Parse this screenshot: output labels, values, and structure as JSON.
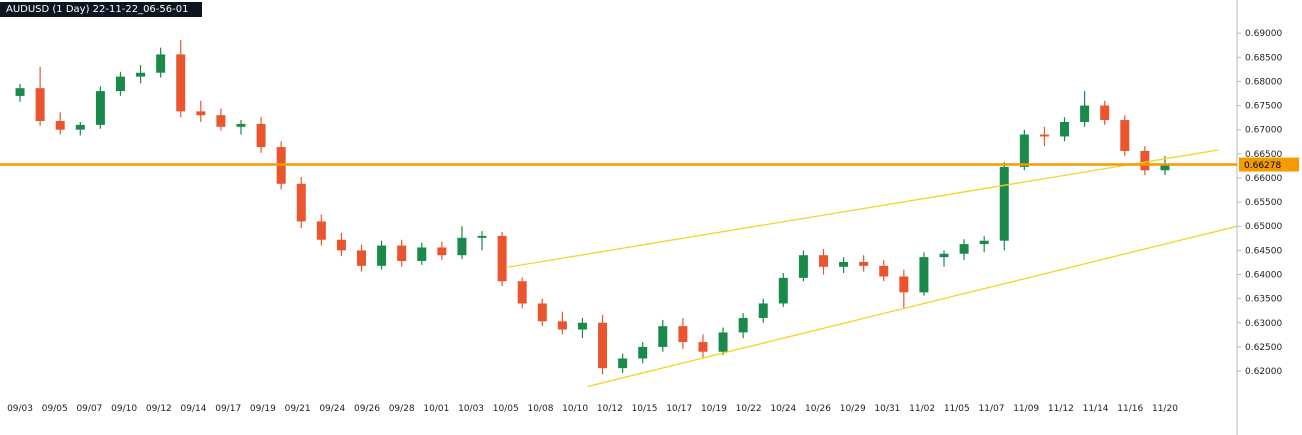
{
  "header": {
    "title": "AUDUSD (1 Day) 22-11-22_06-56-01"
  },
  "colors": {
    "up": "#1a8a4b",
    "down": "#e8552f",
    "hline": "#f59b00",
    "trendline": "#f5d327",
    "axis_line": "#b8b8b8",
    "axis_text": "#222222",
    "badge_text": "#000000",
    "titlebar_bg": "#0d1520",
    "titlebar_text": "#ffffff"
  },
  "chart_data": {
    "type": "candlestick",
    "symbol": "AUDUSD",
    "timeframe": "1 Day",
    "snapshot_label": "22-11-22_06-56-01",
    "current_price": 0.66278,
    "y_axis": {
      "min": 0.614,
      "max": 0.6948,
      "tick_labels": [
        "0.69000",
        "0.68500",
        "0.68000",
        "0.67500",
        "0.67000",
        "0.66500",
        "0.66000",
        "0.65500",
        "0.65000",
        "0.64500",
        "0.64000",
        "0.63500",
        "0.63000",
        "0.62500",
        "0.62000"
      ]
    },
    "x_labels": [
      "09/03",
      "09/05",
      "09/07",
      "09/10",
      "09/12",
      "09/14",
      "09/17",
      "09/19",
      "09/21",
      "09/24",
      "09/26",
      "09/28",
      "10/01",
      "10/03",
      "10/05",
      "10/08",
      "10/10",
      "10/12",
      "10/15",
      "10/17",
      "10/19",
      "10/22",
      "10/24",
      "10/26",
      "10/29",
      "10/31",
      "11/02",
      "11/05",
      "11/07",
      "11/09",
      "11/12",
      "11/14",
      "11/16",
      "11/20"
    ],
    "candles": [
      {
        "d": "09/03",
        "o": 0.677,
        "h": 0.6795,
        "l": 0.6758,
        "c": 0.6786
      },
      {
        "d": "09/04",
        "o": 0.6786,
        "h": 0.683,
        "l": 0.6708,
        "c": 0.6718
      },
      {
        "d": "09/05",
        "o": 0.6718,
        "h": 0.6736,
        "l": 0.669,
        "c": 0.67
      },
      {
        "d": "09/06",
        "o": 0.67,
        "h": 0.6716,
        "l": 0.6688,
        "c": 0.671
      },
      {
        "d": "09/07",
        "o": 0.671,
        "h": 0.679,
        "l": 0.6702,
        "c": 0.678
      },
      {
        "d": "09/10",
        "o": 0.678,
        "h": 0.682,
        "l": 0.677,
        "c": 0.681
      },
      {
        "d": "09/11",
        "o": 0.681,
        "h": 0.6834,
        "l": 0.6796,
        "c": 0.6818
      },
      {
        "d": "09/12",
        "o": 0.6818,
        "h": 0.687,
        "l": 0.6808,
        "c": 0.6856
      },
      {
        "d": "09/13",
        "o": 0.6856,
        "h": 0.6886,
        "l": 0.6726,
        "c": 0.6738
      },
      {
        "d": "09/14",
        "o": 0.6738,
        "h": 0.676,
        "l": 0.6716,
        "c": 0.673
      },
      {
        "d": "09/17",
        "o": 0.673,
        "h": 0.6744,
        "l": 0.6698,
        "c": 0.6706
      },
      {
        "d": "09/18",
        "o": 0.6706,
        "h": 0.672,
        "l": 0.669,
        "c": 0.6712
      },
      {
        "d": "09/19",
        "o": 0.6712,
        "h": 0.6726,
        "l": 0.6652,
        "c": 0.6664
      },
      {
        "d": "09/20",
        "o": 0.6664,
        "h": 0.6676,
        "l": 0.6576,
        "c": 0.6588
      },
      {
        "d": "09/21",
        "o": 0.6588,
        "h": 0.6602,
        "l": 0.6496,
        "c": 0.651
      },
      {
        "d": "09/24",
        "o": 0.651,
        "h": 0.6524,
        "l": 0.646,
        "c": 0.6472
      },
      {
        "d": "09/25",
        "o": 0.6472,
        "h": 0.6486,
        "l": 0.6438,
        "c": 0.645
      },
      {
        "d": "09/26",
        "o": 0.645,
        "h": 0.6462,
        "l": 0.6406,
        "c": 0.6418
      },
      {
        "d": "09/27",
        "o": 0.6418,
        "h": 0.647,
        "l": 0.641,
        "c": 0.646
      },
      {
        "d": "09/28",
        "o": 0.646,
        "h": 0.6472,
        "l": 0.6416,
        "c": 0.6428
      },
      {
        "d": "10/01",
        "o": 0.6428,
        "h": 0.6466,
        "l": 0.642,
        "c": 0.6456
      },
      {
        "d": "10/02",
        "o": 0.6456,
        "h": 0.6468,
        "l": 0.643,
        "c": 0.644
      },
      {
        "d": "10/03",
        "o": 0.644,
        "h": 0.65,
        "l": 0.6432,
        "c": 0.6476
      },
      {
        "d": "10/04",
        "o": 0.6476,
        "h": 0.649,
        "l": 0.645,
        "c": 0.648
      },
      {
        "d": "10/05",
        "o": 0.648,
        "h": 0.6488,
        "l": 0.6376,
        "c": 0.6386
      },
      {
        "d": "10/08",
        "o": 0.6386,
        "h": 0.6394,
        "l": 0.633,
        "c": 0.634
      },
      {
        "d": "10/09",
        "o": 0.634,
        "h": 0.635,
        "l": 0.6293,
        "c": 0.6303
      },
      {
        "d": "10/10",
        "o": 0.6303,
        "h": 0.6323,
        "l": 0.6276,
        "c": 0.6286
      },
      {
        "d": "10/11",
        "o": 0.6286,
        "h": 0.631,
        "l": 0.6268,
        "c": 0.63
      },
      {
        "d": "10/12",
        "o": 0.63,
        "h": 0.6316,
        "l": 0.6193,
        "c": 0.6206
      },
      {
        "d": "10/15",
        "o": 0.6206,
        "h": 0.6236,
        "l": 0.6196,
        "c": 0.6226
      },
      {
        "d": "10/16",
        "o": 0.6226,
        "h": 0.626,
        "l": 0.6216,
        "c": 0.625
      },
      {
        "d": "10/17",
        "o": 0.625,
        "h": 0.6306,
        "l": 0.624,
        "c": 0.6293
      },
      {
        "d": "10/18",
        "o": 0.6293,
        "h": 0.631,
        "l": 0.6246,
        "c": 0.626
      },
      {
        "d": "10/19",
        "o": 0.626,
        "h": 0.6276,
        "l": 0.6226,
        "c": 0.624
      },
      {
        "d": "10/22",
        "o": 0.624,
        "h": 0.629,
        "l": 0.6233,
        "c": 0.628
      },
      {
        "d": "10/23",
        "o": 0.628,
        "h": 0.632,
        "l": 0.6268,
        "c": 0.631
      },
      {
        "d": "10/24",
        "o": 0.631,
        "h": 0.635,
        "l": 0.63,
        "c": 0.634
      },
      {
        "d": "10/25",
        "o": 0.634,
        "h": 0.6403,
        "l": 0.6333,
        "c": 0.6393
      },
      {
        "d": "10/26",
        "o": 0.6393,
        "h": 0.645,
        "l": 0.6386,
        "c": 0.644
      },
      {
        "d": "10/29",
        "o": 0.644,
        "h": 0.6453,
        "l": 0.64,
        "c": 0.6416
      },
      {
        "d": "10/30",
        "o": 0.6416,
        "h": 0.6436,
        "l": 0.6403,
        "c": 0.6426
      },
      {
        "d": "10/31",
        "o": 0.6426,
        "h": 0.644,
        "l": 0.6406,
        "c": 0.6418
      },
      {
        "d": "11/01",
        "o": 0.6418,
        "h": 0.643,
        "l": 0.6386,
        "c": 0.6396
      },
      {
        "d": "11/02",
        "o": 0.6396,
        "h": 0.641,
        "l": 0.633,
        "c": 0.6363
      },
      {
        "d": "11/05",
        "o": 0.6363,
        "h": 0.6446,
        "l": 0.6356,
        "c": 0.6436
      },
      {
        "d": "11/06",
        "o": 0.6436,
        "h": 0.645,
        "l": 0.6416,
        "c": 0.6443
      },
      {
        "d": "11/07",
        "o": 0.6443,
        "h": 0.6473,
        "l": 0.643,
        "c": 0.6463
      },
      {
        "d": "11/08",
        "o": 0.6463,
        "h": 0.648,
        "l": 0.6446,
        "c": 0.647
      },
      {
        "d": "11/09",
        "o": 0.647,
        "h": 0.6633,
        "l": 0.645,
        "c": 0.6623
      },
      {
        "d": "11/12",
        "o": 0.6623,
        "h": 0.67,
        "l": 0.6616,
        "c": 0.669
      },
      {
        "d": "11/13",
        "o": 0.669,
        "h": 0.6706,
        "l": 0.6666,
        "c": 0.6686
      },
      {
        "d": "11/14",
        "o": 0.6686,
        "h": 0.6726,
        "l": 0.6676,
        "c": 0.6716
      },
      {
        "d": "11/15",
        "o": 0.6716,
        "h": 0.678,
        "l": 0.6706,
        "c": 0.675
      },
      {
        "d": "11/16",
        "o": 0.675,
        "h": 0.676,
        "l": 0.671,
        "c": 0.672
      },
      {
        "d": "11/19",
        "o": 0.672,
        "h": 0.673,
        "l": 0.6646,
        "c": 0.6656
      },
      {
        "d": "11/20",
        "o": 0.6656,
        "h": 0.6666,
        "l": 0.6606,
        "c": 0.6616
      },
      {
        "d": "11/21",
        "o": 0.6616,
        "h": 0.6646,
        "l": 0.6606,
        "c": 0.6628
      }
    ],
    "horizontal_line": {
      "price": 0.66278,
      "label": "0.66278"
    },
    "trendlines": [
      {
        "x1_frac": 0.41,
        "price1": 0.6415,
        "x2_frac": 0.985,
        "price2": 0.6658
      },
      {
        "x1_frac": 0.475,
        "price1": 0.6168,
        "x2_frac": 1.0,
        "price2": 0.65
      }
    ]
  }
}
